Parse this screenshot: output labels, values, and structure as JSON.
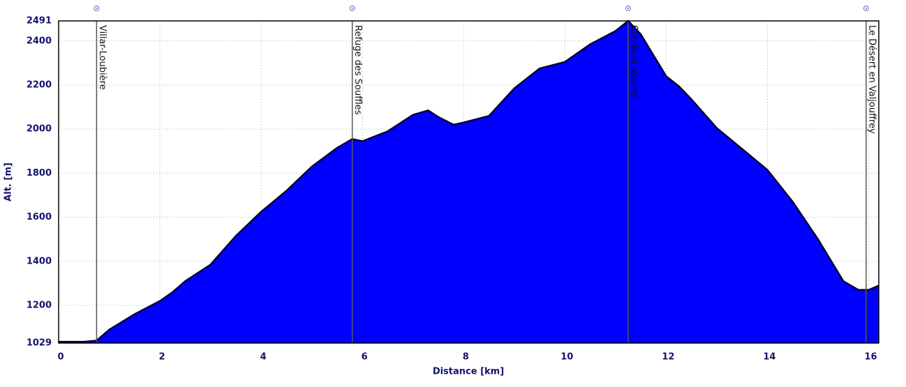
{
  "chart_data": {
    "type": "area",
    "x_label": "Distance [km]",
    "y_label": "Alt. [m]",
    "x": [
      0,
      0.5,
      0.75,
      1.0,
      1.5,
      2.0,
      2.25,
      2.5,
      3.0,
      3.5,
      4.0,
      4.5,
      5.0,
      5.5,
      5.8,
      6.0,
      6.5,
      7.0,
      7.3,
      7.5,
      7.8,
      8.0,
      8.5,
      9.0,
      9.5,
      10.0,
      10.5,
      11.0,
      11.25,
      11.5,
      12.0,
      12.25,
      12.5,
      13.0,
      13.5,
      14.0,
      14.5,
      15.0,
      15.5,
      15.8,
      16.0,
      16.2
    ],
    "series": [
      {
        "name": "Altitude",
        "color": "#0000ff",
        "values": [
          1035,
          1035,
          1040,
          1090,
          1160,
          1220,
          1260,
          1310,
          1385,
          1515,
          1625,
          1720,
          1830,
          1915,
          1955,
          1945,
          1990,
          2065,
          2085,
          2055,
          2020,
          2030,
          2060,
          2185,
          2275,
          2305,
          2385,
          2445,
          2491,
          2430,
          2240,
          2195,
          2135,
          2005,
          1910,
          1815,
          1670,
          1500,
          1310,
          1270,
          1270,
          1290
        ]
      }
    ],
    "annotations": [
      {
        "label": "Villar-Loubière",
        "x": 0.75
      },
      {
        "label": "Refuge des Souffles",
        "x": 5.8
      },
      {
        "label": "Col de la Vaurze",
        "x": 11.25
      },
      {
        "label": "Le Désert en Valjouffrey",
        "x": 15.95
      }
    ],
    "xlim": [
      0,
      16.2
    ],
    "xticks": [
      0,
      2,
      4,
      6,
      8,
      10,
      12,
      14,
      16
    ],
    "ylim": [
      1029,
      2491
    ],
    "yticks": [
      1029,
      1200,
      1400,
      1600,
      1800,
      2000,
      2200,
      2400,
      2491
    ],
    "grid": true
  }
}
